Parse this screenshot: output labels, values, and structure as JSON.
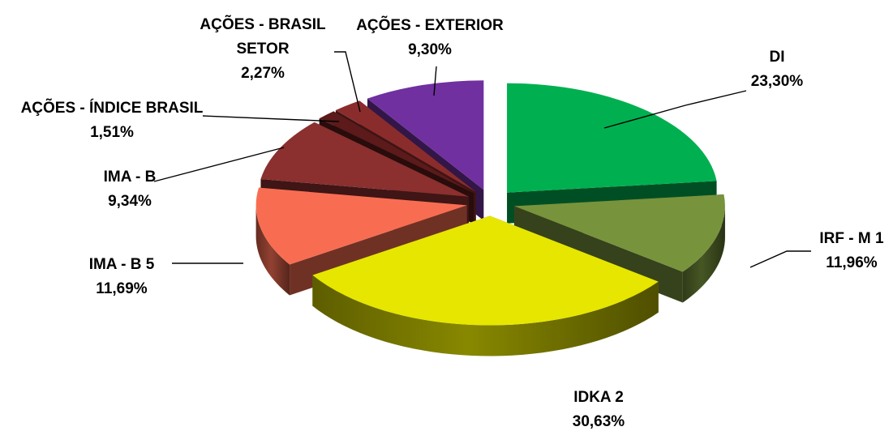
{
  "chart_data": {
    "type": "pie",
    "title": "",
    "style": "3d-exploded",
    "legend": "none",
    "slices": [
      {
        "label": "DI",
        "value": 23.3,
        "value_label": "23,30%",
        "color": "#00b050"
      },
      {
        "label": "IRF - M 1",
        "value": 11.96,
        "value_label": "11,96%",
        "color": "#77933c"
      },
      {
        "label": "IDKA 2",
        "value": 30.63,
        "value_label": "30,63%",
        "color": "#e6e600"
      },
      {
        "label": "IMA - B 5",
        "value": 11.69,
        "value_label": "11,69%",
        "color": "#f86d52"
      },
      {
        "label": "IMA - B",
        "value": 9.34,
        "value_label": "9,34%",
        "color": "#8b2f2f"
      },
      {
        "label": "AÇÕES - ÍNDICE BRASIL",
        "value": 1.51,
        "value_label": "1,51%",
        "color": "#5c1a1a"
      },
      {
        "label": "AÇÕES - BRASIL SETOR",
        "value": 2.27,
        "value_label": "2,27%",
        "color": "#8b2c2c"
      },
      {
        "label": "AÇÕES - EXTERIOR",
        "value": 9.3,
        "value_label": "9,30%",
        "color": "#7030a0"
      }
    ]
  }
}
